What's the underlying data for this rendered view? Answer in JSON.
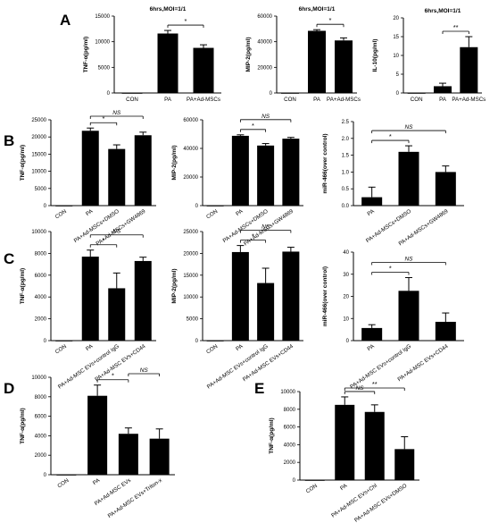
{
  "panel_letters": [
    "A",
    "B",
    "C",
    "D",
    "E"
  ],
  "chart_data": [
    {
      "id": "A1",
      "panel": "A",
      "type": "bar",
      "title": "6hrs,MOI=1/1",
      "ylabel": "TNF-α(pg/ml)",
      "categories": [
        "CON",
        "PA",
        "PA+Ad-MSCs"
      ],
      "values": [
        0,
        11600,
        8800
      ],
      "errors": [
        0,
        600,
        600
      ],
      "ylim": [
        0,
        15000
      ],
      "yticks": [
        "0",
        "5000",
        "10000",
        "15000"
      ],
      "cat_rotate": false,
      "sig": [
        {
          "from": 1,
          "to": 2,
          "label": "*"
        }
      ]
    },
    {
      "id": "A2",
      "panel": "A",
      "type": "bar",
      "title": "6hrs,MOI=1/1",
      "ylabel": "MIP-2(pg/ml)",
      "categories": [
        "CON",
        "PA",
        "PA+Ad-MSCs"
      ],
      "values": [
        0,
        48500,
        41000
      ],
      "errors": [
        0,
        900,
        2000
      ],
      "ylim": [
        0,
        60000
      ],
      "yticks": [
        "0",
        "20000",
        "40000",
        "60000"
      ],
      "cat_rotate": false,
      "sig": [
        {
          "from": 1,
          "to": 2,
          "label": "*"
        }
      ]
    },
    {
      "id": "A3",
      "panel": "A",
      "type": "bar",
      "title": "6hrs,MOI=1/1",
      "ylabel": "IL-10(pg/ml)",
      "categories": [
        "CON",
        "PA",
        "PA+Ad-MSCs"
      ],
      "values": [
        0,
        1.8,
        12.2
      ],
      "errors": [
        0,
        0.8,
        2.8
      ],
      "ylim": [
        0,
        20
      ],
      "yticks": [
        "0",
        "5",
        "10",
        "15",
        "20"
      ],
      "cat_rotate": false,
      "sig": [
        {
          "from": 1,
          "to": 2,
          "label": "**"
        }
      ]
    },
    {
      "id": "B1",
      "panel": "B",
      "type": "bar",
      "ylabel": "TNF-α(pg/ml)",
      "categories": [
        "CON",
        "PA",
        "PA+Ad-MSCs+DMSO",
        "PA+Ad-MSCs+GW4869"
      ],
      "values": [
        0,
        21800,
        16500,
        20500
      ],
      "errors": [
        0,
        800,
        1200,
        900
      ],
      "ylim": [
        0,
        25000
      ],
      "yticks": [
        "0",
        "5000",
        "10000",
        "15000",
        "20000",
        "25000"
      ],
      "cat_rotate": true,
      "sig": [
        {
          "from": 1,
          "to": 2,
          "label": "*"
        },
        {
          "from": 1,
          "to": 3,
          "label": "NS"
        }
      ]
    },
    {
      "id": "B2",
      "panel": "B",
      "type": "bar",
      "ylabel": "MIP-2(pg/ml)",
      "categories": [
        "CON",
        "PA",
        "PA+Ad-MSCs+DMSO",
        "PA+Ad-MSCs+GW4869"
      ],
      "values": [
        0,
        48800,
        42000,
        46800
      ],
      "errors": [
        0,
        700,
        1400,
        900
      ],
      "ylim": [
        0,
        60000
      ],
      "yticks": [
        "0",
        "20000",
        "40000",
        "60000"
      ],
      "cat_rotate": true,
      "sig": [
        {
          "from": 1,
          "to": 2,
          "label": "*"
        },
        {
          "from": 1,
          "to": 3,
          "label": "NS"
        }
      ]
    },
    {
      "id": "B3",
      "panel": "B",
      "type": "bar",
      "ylabel": "miR-466(over control)",
      "categories": [
        "PA",
        "PA+Ad-MSCs+DMSO",
        "PA+Ad-MSCs+GW4869"
      ],
      "values": [
        0.25,
        1.6,
        1.0
      ],
      "errors": [
        0.3,
        0.18,
        0.18
      ],
      "ylim": [
        0,
        2.5
      ],
      "yticks": [
        "0.0",
        "0.5",
        "1.0",
        "1.5",
        "2.0",
        "2.5"
      ],
      "cat_rotate": true,
      "sig": [
        {
          "from": 0,
          "to": 1,
          "label": "*"
        },
        {
          "from": 0,
          "to": 2,
          "label": "NS"
        }
      ]
    },
    {
      "id": "C1",
      "panel": "C",
      "type": "bar",
      "ylabel": "TNF-α(pg/ml)",
      "categories": [
        "CON",
        "PA",
        "PA+Ad-MSC EVs+control IgG",
        "PA+Ad-MSC EVs+CD44"
      ],
      "values": [
        0,
        7700,
        4800,
        7300
      ],
      "errors": [
        0,
        600,
        1400,
        350
      ],
      "ylim": [
        0,
        10000
      ],
      "yticks": [
        "0",
        "2000",
        "4000",
        "6000",
        "8000",
        "10000"
      ],
      "cat_rotate": true,
      "sig": [
        {
          "from": 1,
          "to": 2,
          "label": "*"
        },
        {
          "from": 1,
          "to": 3,
          "label": "NS"
        }
      ]
    },
    {
      "id": "C2",
      "panel": "C",
      "type": "bar",
      "ylabel": "MIP-2(pg/ml)",
      "categories": [
        "CON",
        "PA",
        "PA+Ad-MSC EVs+control IgG",
        "PA+Ad-MSC EVs+CD44"
      ],
      "values": [
        0,
        20300,
        13200,
        20400
      ],
      "errors": [
        0,
        1500,
        3400,
        1000
      ],
      "ylim": [
        0,
        25000
      ],
      "yticks": [
        "0",
        "5000",
        "10000",
        "15000",
        "20000",
        "25000"
      ],
      "cat_rotate": true,
      "sig": [
        {
          "from": 1,
          "to": 2,
          "label": "*"
        },
        {
          "from": 1,
          "to": 3,
          "label": "NS"
        }
      ]
    },
    {
      "id": "C3",
      "panel": "C",
      "type": "bar",
      "ylabel": "miR-466(over control)",
      "categories": [
        "PA",
        "PA+Ad-MSC EVs+control IgG",
        "PA+Ad-MSC EVs+CD44"
      ],
      "values": [
        5.7,
        22.5,
        8.5
      ],
      "errors": [
        1.5,
        6,
        4
      ],
      "ylim": [
        0,
        40
      ],
      "yticks": [
        "0",
        "10",
        "20",
        "30",
        "40"
      ],
      "cat_rotate": true,
      "sig": [
        {
          "from": 0,
          "to": 1,
          "label": "*"
        },
        {
          "from": 0,
          "to": 2,
          "label": "NS"
        }
      ]
    },
    {
      "id": "D1",
      "panel": "D",
      "type": "bar",
      "ylabel": "TNF-α(pg/ml)",
      "categories": [
        "CON",
        "PA",
        "PA+Ad-MSC EVs",
        "PA+Ad-MSC EVs+Triton-x"
      ],
      "values": [
        0,
        8100,
        4200,
        3700
      ],
      "errors": [
        0,
        1100,
        600,
        1000
      ],
      "ylim": [
        0,
        10000
      ],
      "yticks": [
        "0",
        "2000",
        "4000",
        "6000",
        "8000",
        "10000"
      ],
      "cat_rotate": true,
      "sig": [
        {
          "from": 1,
          "to": 2,
          "label": "*"
        },
        {
          "from": 2,
          "to": 3,
          "label": "NS"
        }
      ]
    },
    {
      "id": "E1",
      "panel": "E",
      "type": "bar",
      "ylabel": "TNF-α(pg/ml)",
      "categories": [
        "CON",
        "PA",
        "PA+Ad-MSC EVs+Chl",
        "PA+Ad-MSC EVs+DMSO"
      ],
      "values": [
        0,
        8500,
        7700,
        3500
      ],
      "errors": [
        0,
        900,
        800,
        1400
      ],
      "ylim": [
        0,
        10000
      ],
      "yticks": [
        "0",
        "2000",
        "4000",
        "6000",
        "8000",
        "10000"
      ],
      "cat_rotate": true,
      "sig": [
        {
          "from": 1,
          "to": 2,
          "label": "NS"
        },
        {
          "from": 1,
          "to": 3,
          "label": "**"
        }
      ]
    }
  ]
}
